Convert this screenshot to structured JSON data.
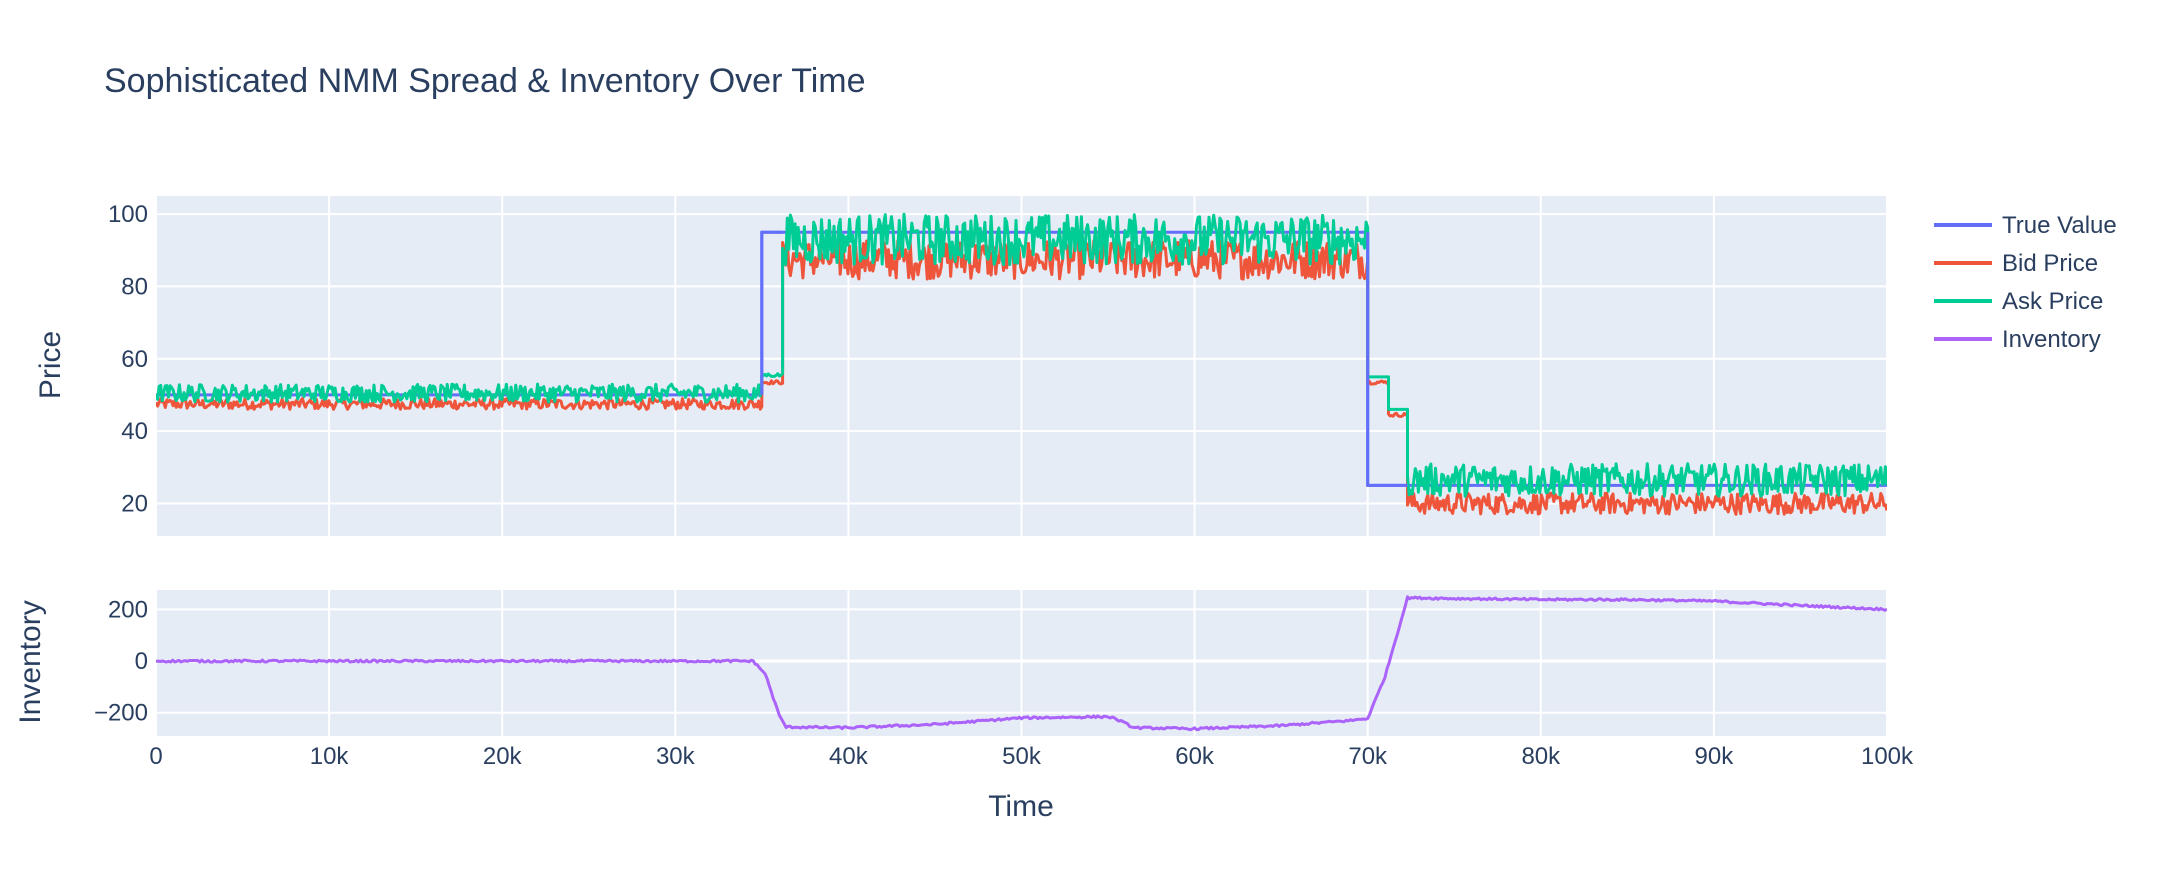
{
  "chart_data": {
    "type": "line",
    "title": "Sophisticated NMM Spread & Inventory Over Time",
    "xlabel": "Time",
    "x_ticks": [
      "0",
      "10k",
      "20k",
      "30k",
      "40k",
      "50k",
      "60k",
      "70k",
      "80k",
      "90k",
      "100k"
    ],
    "xlim": [
      0,
      100000
    ],
    "grid": true,
    "legend_position": "top-right",
    "panels": [
      {
        "id": "price",
        "ylabel": "Price",
        "ylim": [
          11,
          105
        ],
        "y_ticks": [
          20,
          40,
          60,
          80,
          100
        ],
        "series": [
          {
            "name": "True Value",
            "color": "#636efa",
            "x": [
              0,
              35000,
              35000,
              70000,
              70000,
              72300,
              72300,
              100000
            ],
            "y": [
              50,
              50,
              95,
              95,
              25,
              25,
              25,
              25
            ]
          },
          {
            "name": "Bid Price",
            "color": "#ef553b",
            "segments": [
              {
                "x_start": 0,
                "x_end": 35000,
                "low": 46,
                "high": 49
              },
              {
                "x_start": 35000,
                "x_end": 36200,
                "low": 53,
                "high": 54
              },
              {
                "x_start": 36200,
                "x_end": 70000,
                "low": 82,
                "high": 93
              },
              {
                "x_start": 70000,
                "x_end": 71200,
                "low": 53,
                "high": 54
              },
              {
                "x_start": 71200,
                "x_end": 72300,
                "low": 44,
                "high": 45
              },
              {
                "x_start": 72300,
                "x_end": 100000,
                "low": 17,
                "high": 23
              }
            ]
          },
          {
            "name": "Ask Price",
            "color": "#00cc96",
            "segments": [
              {
                "x_start": 0,
                "x_end": 35000,
                "low": 48,
                "high": 53
              },
              {
                "x_start": 35000,
                "x_end": 36200,
                "low": 55,
                "high": 56
              },
              {
                "x_start": 36200,
                "x_end": 70000,
                "low": 86,
                "high": 100
              },
              {
                "x_start": 70000,
                "x_end": 71200,
                "low": 55,
                "high": 55
              },
              {
                "x_start": 71200,
                "x_end": 72300,
                "low": 46,
                "high": 46
              },
              {
                "x_start": 72300,
                "x_end": 100000,
                "low": 22,
                "high": 31
              }
            ]
          }
        ]
      },
      {
        "id": "inventory",
        "ylabel": "Inventory",
        "ylim": [
          -290,
          275
        ],
        "y_ticks": [
          200,
          0,
          -200
        ],
        "y_tick_labels": [
          "200",
          "0",
          "−200"
        ],
        "series": [
          {
            "name": "Inventory",
            "color": "#ab63fa",
            "x": [
              0,
              10000,
              20000,
              30000,
              34500,
              35200,
              36000,
              36400,
              40000,
              45000,
              50000,
              55000,
              55500,
              56500,
              60000,
              65000,
              69000,
              70000,
              71000,
              72300,
              75000,
              80000,
              85000,
              90000,
              95000,
              100000
            ],
            "y": [
              0,
              0,
              0,
              0,
              0,
              -50,
              -210,
              -255,
              -258,
              -245,
              -220,
              -215,
              -225,
              -258,
              -262,
              -250,
              -230,
              -222,
              -60,
              245,
              242,
              238,
              238,
              232,
              215,
              200
            ]
          }
        ]
      }
    ]
  }
}
